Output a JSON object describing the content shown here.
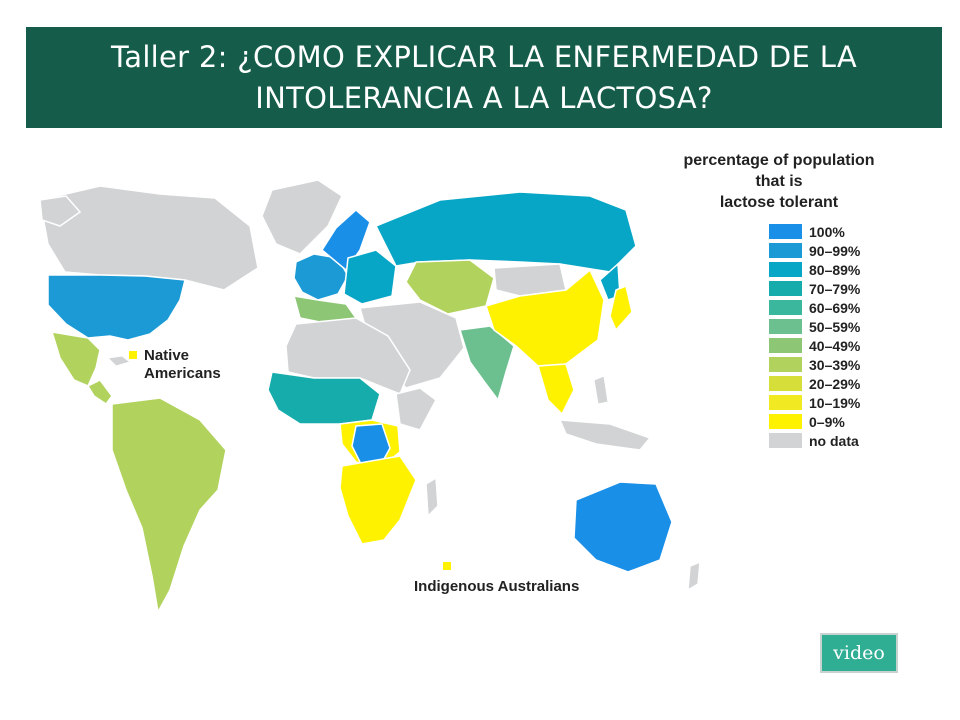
{
  "title": "Taller 2: ¿COMO EXPLICAR LA ENFERMEDAD DE LA INTOLERANCIA A LA LACTOSA?",
  "legend": {
    "title_line1": "percentage of population",
    "title_line2": "that is",
    "title_line3": "lactose tolerant",
    "items": [
      {
        "label": "100%",
        "color": "#1a8fe8"
      },
      {
        "label": "90–99%",
        "color": "#1b9ad6"
      },
      {
        "label": "80–89%",
        "color": "#08a6c6"
      },
      {
        "label": "70–79%",
        "color": "#16acac"
      },
      {
        "label": "60–69%",
        "color": "#3ab79c"
      },
      {
        "label": "50–59%",
        "color": "#6cc08f"
      },
      {
        "label": "40–49%",
        "color": "#8dc775"
      },
      {
        "label": "30–39%",
        "color": "#b2d25e"
      },
      {
        "label": "20–29%",
        "color": "#d6df3a"
      },
      {
        "label": "10–19%",
        "color": "#f1ea22"
      },
      {
        "label": "0–9%",
        "color": "#fff200"
      },
      {
        "label": "no data",
        "color": "#d1d3d4"
      }
    ]
  },
  "annotations": {
    "native_line1": "Native",
    "native_line2": "Americans",
    "indigenous": "Indigenous Australians"
  },
  "video_button": "video"
}
